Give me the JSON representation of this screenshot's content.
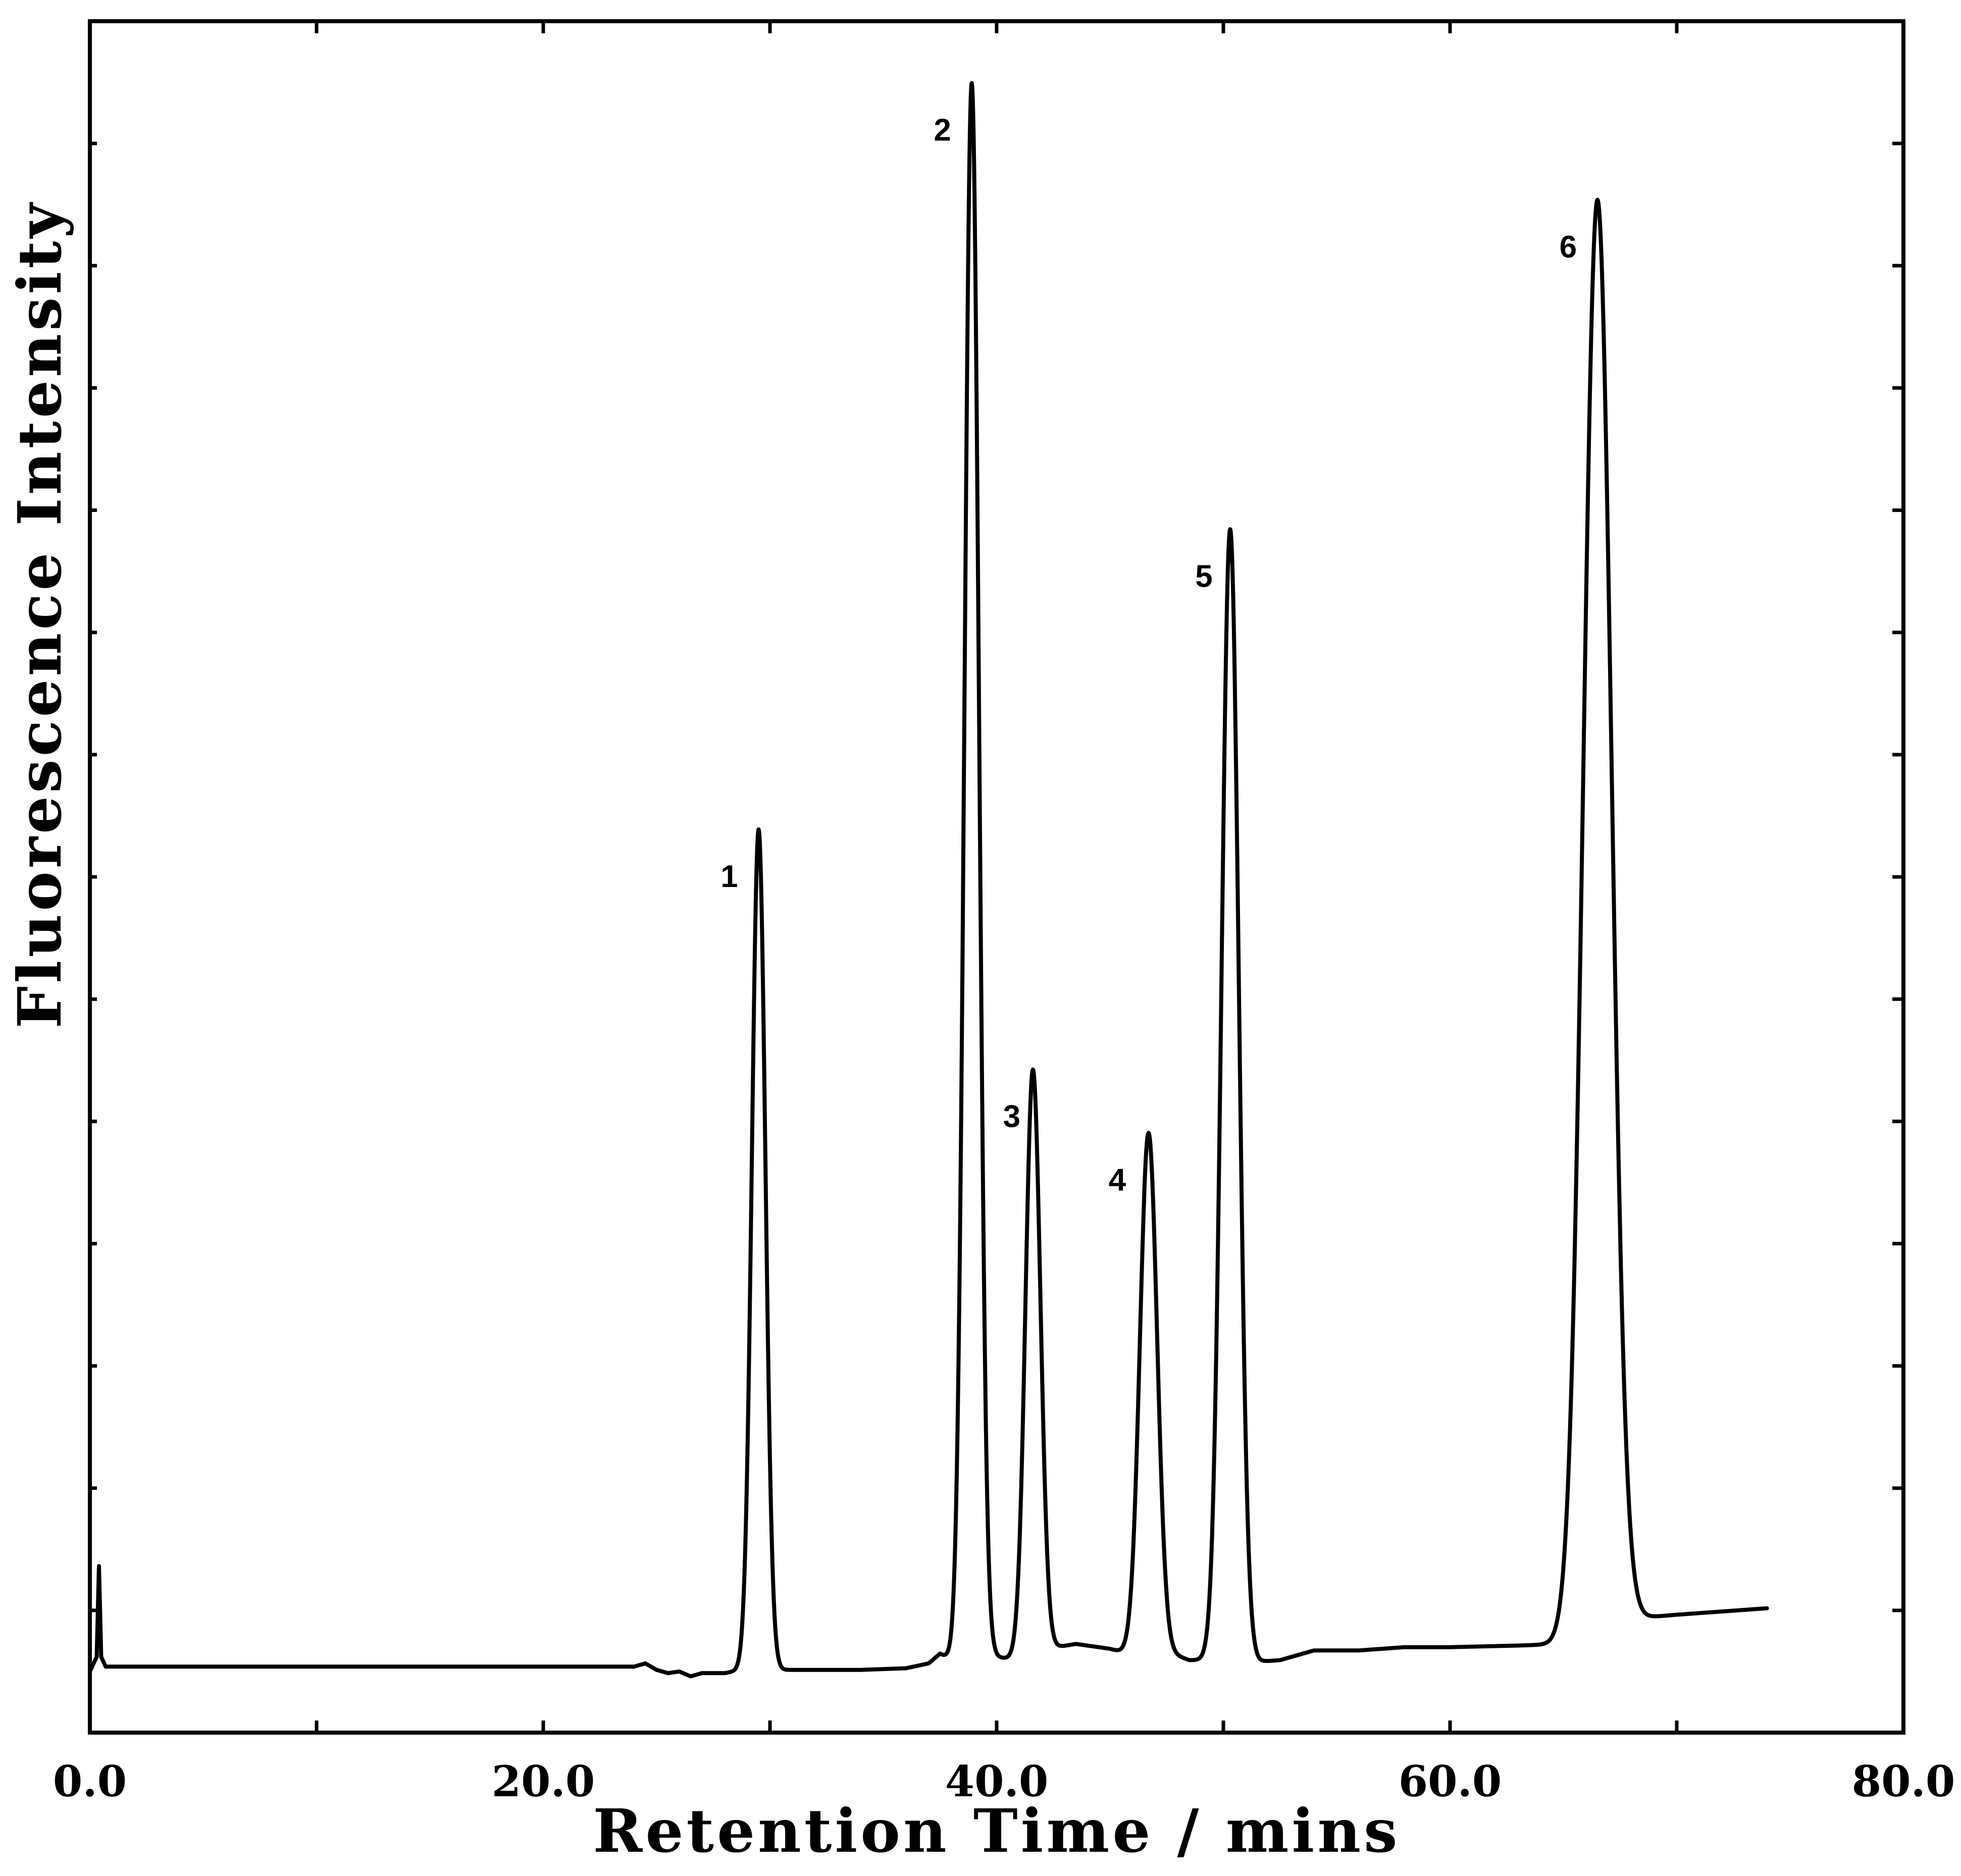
{
  "chart_data": {
    "type": "line",
    "title": "",
    "xlabel": "Retention Time / mins",
    "ylabel": "Fluorescence Intensity",
    "xlim": [
      0,
      80
    ],
    "ylim": [
      0,
      100
    ],
    "xticks": [
      0,
      10,
      20,
      30,
      40,
      50,
      60,
      70,
      80
    ],
    "xtick_labels": [
      "0.0",
      "20.0",
      "40.0",
      "60.0",
      "80.0"
    ],
    "grid": false,
    "legend": "none",
    "series": [
      {
        "baseline": [
          [
            0.0,
            1.9
          ],
          [
            0.3,
            2.8
          ],
          [
            0.4,
            8.4
          ],
          [
            0.5,
            2.8
          ],
          [
            0.7,
            2.2
          ],
          [
            5,
            2.2
          ],
          [
            10,
            2.2
          ],
          [
            15,
            2.2
          ],
          [
            20,
            2.2
          ],
          [
            24,
            2.2
          ],
          [
            24.5,
            2.4
          ],
          [
            25,
            2.0
          ],
          [
            25.5,
            1.8
          ],
          [
            26,
            1.9
          ],
          [
            26.5,
            1.6
          ],
          [
            27,
            1.8
          ],
          [
            28,
            1.8
          ],
          [
            28.8,
            2.0
          ],
          [
            30.9,
            2.0
          ],
          [
            34,
            2.0
          ],
          [
            36,
            2.1
          ],
          [
            37.0,
            2.4
          ],
          [
            37.5,
            3.0
          ],
          [
            38.0,
            2.6
          ],
          [
            38.6,
            2.4
          ],
          [
            39.9,
            2.8
          ],
          [
            41.0,
            2.6
          ],
          [
            42.2,
            3.3
          ],
          [
            43.5,
            3.6
          ],
          [
            45,
            3.3
          ],
          [
            46,
            2.9
          ],
          [
            47.5,
            3.1
          ],
          [
            48.5,
            2.6
          ],
          [
            49.5,
            2.6
          ],
          [
            51.5,
            2.5
          ],
          [
            52.5,
            2.6
          ],
          [
            54,
            3.2
          ],
          [
            56,
            3.2
          ],
          [
            58,
            3.4
          ],
          [
            60,
            3.4
          ],
          [
            63,
            3.5
          ],
          [
            65.2,
            3.6
          ],
          [
            67.5,
            5.1
          ],
          [
            70,
            5.4
          ],
          [
            72,
            5.6
          ],
          [
            74,
            5.8
          ]
        ],
        "peaks": [
          {
            "label": "1",
            "rt": 29.5,
            "height": 53.8,
            "width": 0.3
          },
          {
            "label": "2",
            "rt": 38.9,
            "height": 99.8,
            "width": 0.32
          },
          {
            "label": "3",
            "rt": 41.6,
            "height": 39.0,
            "width": 0.33
          },
          {
            "label": "4",
            "rt": 46.7,
            "height": 35.1,
            "width": 0.38
          },
          {
            "label": "5",
            "rt": 50.3,
            "height": 72.3,
            "width": 0.38
          },
          {
            "label": "6",
            "rt": 66.5,
            "height": 92.6,
            "width": 0.62
          }
        ]
      }
    ]
  }
}
